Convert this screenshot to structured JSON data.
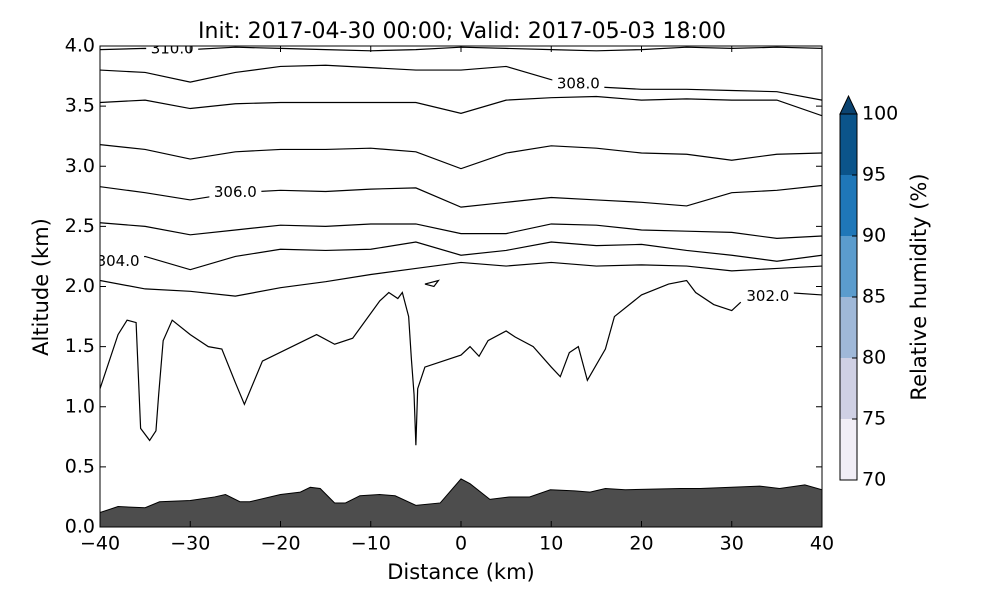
{
  "chart_data": {
    "type": "contour",
    "title": "Init: 2017-04-30 00:00; Valid: 2017-05-03 18:00",
    "x_label": "Distance (km)",
    "y_label": "Altitude (km)",
    "xlim": [
      -40,
      40
    ],
    "ylim": [
      0,
      4
    ],
    "xticks": [
      {
        "value": -40,
        "label": "−40"
      },
      {
        "value": -30,
        "label": "−30"
      },
      {
        "value": -20,
        "label": "−20"
      },
      {
        "value": -10,
        "label": "−10"
      },
      0,
      10,
      20,
      30,
      40
    ],
    "yticks": [
      {
        "value": 0,
        "label": "0.0"
      },
      0.5,
      {
        "value": 1,
        "label": "1.0"
      },
      1.5,
      {
        "value": 2,
        "label": "2.0"
      },
      2.5,
      {
        "value": 3,
        "label": "3.0"
      },
      3.5,
      {
        "value": 4,
        "label": "4.0"
      }
    ],
    "contours": {
      "color": "#000000",
      "lines": [
        {
          "label": "310.0",
          "x": [
            -40,
            -35,
            -30,
            -25,
            -20,
            -15,
            -10,
            -5,
            0,
            5,
            10,
            15,
            20,
            25,
            30,
            35,
            40
          ],
          "values": [
            3.97,
            3.98,
            3.97,
            3.99,
            3.98,
            3.97,
            3.96,
            3.97,
            3.99,
            3.98,
            3.97,
            3.96,
            3.97,
            3.99,
            3.98,
            3.99,
            3.98
          ]
        },
        {
          "label": "308.0",
          "x": [
            -40,
            -35,
            -30,
            -25,
            -20,
            -15,
            -10,
            -5,
            0,
            5,
            10,
            15,
            20,
            25,
            30,
            35,
            40
          ],
          "values": [
            3.8,
            3.78,
            3.7,
            3.78,
            3.83,
            3.84,
            3.82,
            3.8,
            3.8,
            3.83,
            3.72,
            3.66,
            3.64,
            3.64,
            3.63,
            3.62,
            3.55
          ]
        },
        {
          "x": [
            -40,
            -35,
            -30,
            -25,
            -20,
            -15,
            -10,
            -5,
            0,
            5,
            10,
            15,
            20,
            25,
            30,
            35,
            40
          ],
          "values": [
            3.53,
            3.55,
            3.48,
            3.52,
            3.53,
            3.53,
            3.53,
            3.53,
            3.44,
            3.55,
            3.57,
            3.58,
            3.55,
            3.56,
            3.55,
            3.55,
            3.42
          ]
        },
        {
          "x": [
            -40,
            -35,
            -30,
            -25,
            -20,
            -15,
            -10,
            -5,
            0,
            5,
            10,
            15,
            20,
            25,
            30,
            35,
            40
          ],
          "values": [
            3.18,
            3.14,
            3.06,
            3.12,
            3.14,
            3.14,
            3.15,
            3.12,
            2.98,
            3.11,
            3.17,
            3.15,
            3.11,
            3.1,
            3.05,
            3.1,
            3.11
          ]
        },
        {
          "label": "306.0",
          "x": [
            -40,
            -35,
            -30,
            -25,
            -20,
            -15,
            -10,
            -5,
            0,
            5,
            10,
            15,
            20,
            25,
            30,
            35,
            40
          ],
          "values": [
            2.83,
            2.78,
            2.72,
            2.78,
            2.8,
            2.79,
            2.81,
            2.82,
            2.66,
            2.7,
            2.74,
            2.72,
            2.7,
            2.67,
            2.78,
            2.8,
            2.84
          ]
        },
        {
          "x": [
            -40,
            -35,
            -30,
            -25,
            -20,
            -15,
            -10,
            -5,
            0,
            5,
            10,
            15,
            20,
            25,
            30,
            35,
            40
          ],
          "values": [
            2.53,
            2.5,
            2.43,
            2.47,
            2.51,
            2.5,
            2.52,
            2.52,
            2.44,
            2.44,
            2.52,
            2.51,
            2.47,
            2.46,
            2.45,
            2.4,
            2.42
          ]
        },
        {
          "label": "304.0",
          "x": [
            -40,
            -35,
            -30,
            -25,
            -20,
            -15,
            -10,
            -5,
            0,
            5,
            10,
            15,
            20,
            25,
            30,
            35,
            40
          ],
          "values": [
            2.18,
            2.25,
            2.14,
            2.25,
            2.31,
            2.3,
            2.31,
            2.37,
            2.26,
            2.3,
            2.37,
            2.34,
            2.35,
            2.3,
            2.26,
            2.21,
            2.26
          ]
        },
        {
          "x": [
            -40,
            -35,
            -30,
            -25,
            -20,
            -15,
            -10,
            -5,
            0,
            5,
            10,
            15,
            20,
            25,
            30,
            35,
            40
          ],
          "values": [
            2.05,
            1.98,
            1.96,
            1.92,
            1.99,
            2.04,
            2.1,
            2.15,
            2.2,
            2.17,
            2.2,
            2.17,
            2.18,
            2.17,
            2.13,
            2.15,
            2.17
          ]
        },
        {
          "label": "302.0",
          "x": [
            -40,
            -38,
            -37,
            -36,
            -35.5,
            -34.5,
            -33.8,
            -33.5,
            -33,
            -32,
            -30,
            -28,
            -26.5,
            -25,
            -24,
            -22,
            -16,
            -14,
            -12,
            -9,
            -8,
            -7,
            -6.5,
            -5.8,
            -5.5,
            -5.2,
            -5,
            -4.8,
            -4,
            0,
            1,
            2,
            3,
            5,
            6,
            8,
            10,
            11,
            12,
            13,
            14,
            16,
            17,
            20,
            23,
            25,
            26,
            28,
            30,
            31,
            null,
            36,
            40
          ],
          "values": [
            1.15,
            1.6,
            1.72,
            1.7,
            0.82,
            0.72,
            0.8,
            1.1,
            1.55,
            1.72,
            1.6,
            1.5,
            1.48,
            1.2,
            1.02,
            1.38,
            1.6,
            1.52,
            1.57,
            1.88,
            1.95,
            1.9,
            1.95,
            1.75,
            1.4,
            1.1,
            0.68,
            1.15,
            1.33,
            1.43,
            1.5,
            1.42,
            1.55,
            1.63,
            1.58,
            1.5,
            1.33,
            1.25,
            1.45,
            1.5,
            1.22,
            1.48,
            1.75,
            1.93,
            2.02,
            2.05,
            1.95,
            1.85,
            1.8,
            1.87,
            null,
            1.95,
            1.93
          ]
        },
        {
          "x": [
            -4,
            -3,
            -2.5,
            -4
          ],
          "values": [
            2.02,
            2.0,
            2.05,
            2.02
          ]
        }
      ]
    },
    "terrain": {
      "color": "#4d4d4d",
      "x": [
        -40,
        -38,
        -35,
        -33.4,
        -30,
        -27.3,
        -26.1,
        -24.5,
        -23.4,
        -20,
        -17.8,
        -16.7,
        -15.6,
        -14,
        -12.8,
        -11.2,
        -9,
        -7.3,
        -5,
        -2.3,
        0,
        1,
        3.2,
        5.4,
        7.6,
        9.9,
        12.6,
        14.3,
        16,
        18.2,
        24.3,
        26.5,
        33.1,
        35.3,
        38.1,
        40
      ],
      "values": [
        0.12,
        0.17,
        0.16,
        0.21,
        0.22,
        0.25,
        0.27,
        0.21,
        0.21,
        0.27,
        0.29,
        0.33,
        0.32,
        0.2,
        0.2,
        0.26,
        0.27,
        0.26,
        0.18,
        0.2,
        0.4,
        0.36,
        0.23,
        0.25,
        0.25,
        0.31,
        0.3,
        0.29,
        0.32,
        0.31,
        0.32,
        0.32,
        0.34,
        0.32,
        0.35,
        0.31
      ]
    },
    "colorbar": {
      "label": "Relative humidity (%)",
      "ticks": [
        70,
        75,
        80,
        85,
        90,
        95,
        100
      ],
      "colors": [
        "#f1eef6",
        "#cfd0e4",
        "#9fb8d8",
        "#5b9ccd",
        "#1f77b8",
        "#0b548a"
      ],
      "extend_color": "#0b4370"
    }
  }
}
